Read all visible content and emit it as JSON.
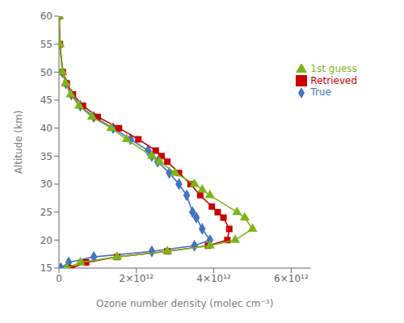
{
  "chart_data": {
    "type": "line",
    "xlabel": "Ozone number density (molec cm⁻³)",
    "ylabel": "Altitude (km)",
    "xlim": [
      0,
      6500000000000.0
    ],
    "ylim": [
      15,
      60
    ],
    "xticks": [
      0,
      {
        "value": 2000000000000.0,
        "label": "2×10¹²"
      },
      {
        "value": 4000000000000.0,
        "label": "4×10¹²"
      },
      {
        "value": 6000000000000.0,
        "label": "6×10¹²"
      }
    ],
    "yticks": [
      15,
      20,
      25,
      30,
      35,
      40,
      45,
      50,
      55,
      60
    ],
    "legend": "right",
    "series": [
      {
        "name": "True",
        "color": "#4472C4",
        "marker": "diamond",
        "x": [
          50000000000.0,
          250000000000.0,
          900000000000.0,
          2400000000000.0,
          3500000000000.0,
          3900000000000.0,
          3700000000000.0,
          3550000000000.0,
          3450000000000.0,
          3300000000000.0,
          3100000000000.0,
          2850000000000.0,
          2550000000000.0,
          2400000000000.0,
          2300000000000.0,
          1850000000000.0,
          1400000000000.0,
          900000000000.0,
          550000000000.0,
          320000000000.0,
          180000000000.0,
          90000000000.0,
          20000000000.0,
          5000000000.0
        ],
        "y": [
          15,
          16,
          17,
          18,
          19,
          20,
          22,
          24,
          25,
          28,
          30,
          32,
          34,
          35,
          36,
          38,
          40,
          42,
          44,
          46,
          48,
          50,
          55,
          60
        ]
      },
      {
        "name": "Retrieved",
        "color": "#CC0000",
        "marker": "square",
        "x": [
          320000000000.0,
          700000000000.0,
          1500000000000.0,
          2800000000000.0,
          3850000000000.0,
          4350000000000.0,
          4400000000000.0,
          4250000000000.0,
          4100000000000.0,
          3950000000000.0,
          3650000000000.0,
          3400000000000.0,
          3100000000000.0,
          2800000000000.0,
          2650000000000.0,
          2500000000000.0,
          2050000000000.0,
          1550000000000.0,
          1000000000000.0,
          620000000000.0,
          360000000000.0,
          200000000000.0,
          100000000000.0,
          25000000000.0,
          5000000000.0
        ],
        "y": [
          15,
          16,
          17,
          18,
          19,
          20,
          22,
          24,
          25,
          26,
          28,
          30,
          32,
          34,
          35,
          36,
          38,
          40,
          42,
          44,
          46,
          48,
          50,
          55,
          60
        ]
      },
      {
        "name": "1st guess",
        "color": "#7CB518",
        "marker": "triangle",
        "x": [
          200000000000.0,
          550000000000.0,
          1500000000000.0,
          2800000000000.0,
          3900000000000.0,
          4550000000000.0,
          5000000000000.0,
          4800000000000.0,
          4600000000000.0,
          3900000000000.0,
          3700000000000.0,
          3500000000000.0,
          3000000000000.0,
          2600000000000.0,
          2400000000000.0,
          1750000000000.0,
          1350000000000.0,
          850000000000.0,
          520000000000.0,
          300000000000.0,
          170000000000.0,
          90000000000.0,
          20000000000.0,
          5000000000.0
        ],
        "y": [
          15,
          16,
          17,
          18,
          19,
          20,
          22,
          24,
          25,
          28,
          29,
          30,
          32,
          34,
          35,
          38,
          40,
          42,
          44,
          46,
          48,
          50,
          55,
          60
        ]
      }
    ]
  }
}
